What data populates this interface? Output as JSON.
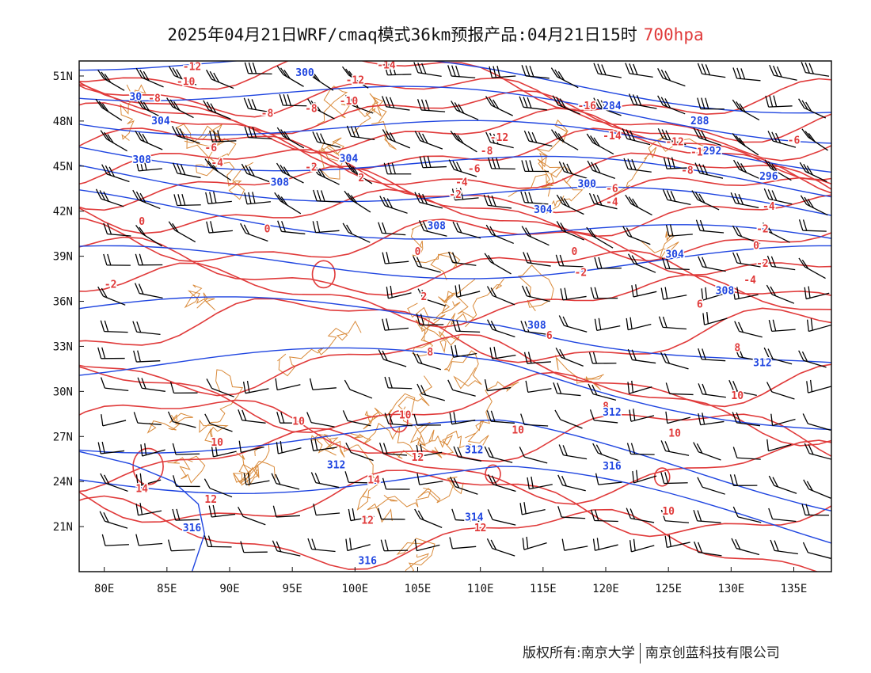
{
  "title": {
    "main": "2025年04月21日WRF/cmaq模式36km预报产品:04月21日15时",
    "level": "700hpa"
  },
  "footer": {
    "left": "版权所有:南京大学",
    "right": "南京创蓝科技有限公司"
  },
  "colors": {
    "temperature": "#e03a3a",
    "height": "#1f45e0",
    "border": "#d98a3a",
    "barb": "#000000",
    "level_text": "#e03a3a"
  },
  "map": {
    "lon_range": [
      78,
      138
    ],
    "lat_range": [
      18,
      52
    ],
    "x_ticks": [
      "80E",
      "85E",
      "90E",
      "95E",
      "100E",
      "105E",
      "110E",
      "115E",
      "120E",
      "125E",
      "130E",
      "135E"
    ],
    "y_ticks": [
      "51N",
      "48N",
      "45N",
      "42N",
      "39N",
      "36N",
      "33N",
      "30N",
      "27N",
      "24N",
      "21N"
    ],
    "temperature_labels": [
      {
        "text": "-12",
        "lon": 87,
        "lat": 51.6
      },
      {
        "text": "-14",
        "lon": 102.5,
        "lat": 51.7
      },
      {
        "text": "-10",
        "lon": 86.5,
        "lat": 50.6
      },
      {
        "text": "-12",
        "lon": 100,
        "lat": 50.7
      },
      {
        "text": "-8",
        "lon": 84,
        "lat": 49.5
      },
      {
        "text": "-10",
        "lon": 99.5,
        "lat": 49.3
      },
      {
        "text": "-8",
        "lon": 93,
        "lat": 48.5
      },
      {
        "text": "-8",
        "lon": 96.5,
        "lat": 48.8
      },
      {
        "text": "-16",
        "lon": 118.5,
        "lat": 49.0
      },
      {
        "text": "-14",
        "lon": 120.5,
        "lat": 47.0
      },
      {
        "text": "-12",
        "lon": 111.5,
        "lat": 46.9
      },
      {
        "text": "-12",
        "lon": 125.5,
        "lat": 46.6
      },
      {
        "text": "-10",
        "lon": 127.5,
        "lat": 45.9
      },
      {
        "text": "-6",
        "lon": 88.5,
        "lat": 46.2
      },
      {
        "text": "-8",
        "lon": 110.5,
        "lat": 46.0
      },
      {
        "text": "-6",
        "lon": 135,
        "lat": 46.7
      },
      {
        "text": "-4",
        "lon": 89,
        "lat": 45.2
      },
      {
        "text": "-2",
        "lon": 96.5,
        "lat": 44.9
      },
      {
        "text": "-6",
        "lon": 109.5,
        "lat": 44.8
      },
      {
        "text": "-8",
        "lon": 126.5,
        "lat": 44.7
      },
      {
        "text": "2",
        "lon": 100.5,
        "lat": 44.2
      },
      {
        "text": "-4",
        "lon": 108.5,
        "lat": 43.9
      },
      {
        "text": "-6",
        "lon": 120.5,
        "lat": 43.5
      },
      {
        "text": "-2",
        "lon": 108,
        "lat": 43.1
      },
      {
        "text": "-4",
        "lon": 120.5,
        "lat": 42.6
      },
      {
        "text": "-4",
        "lon": 133,
        "lat": 42.3
      },
      {
        "text": "0",
        "lon": 83,
        "lat": 41.3
      },
      {
        "text": "0",
        "lon": 93,
        "lat": 40.8
      },
      {
        "text": "-2",
        "lon": 132.5,
        "lat": 40.8
      },
      {
        "text": "0",
        "lon": 132,
        "lat": 39.7
      },
      {
        "text": "0",
        "lon": 105,
        "lat": 39.3
      },
      {
        "text": "0",
        "lon": 117.5,
        "lat": 39.3
      },
      {
        "text": "-2",
        "lon": 132.5,
        "lat": 38.5
      },
      {
        "text": "-2",
        "lon": 118,
        "lat": 37.9
      },
      {
        "text": "-4",
        "lon": 131.5,
        "lat": 37.4
      },
      {
        "text": "-2",
        "lon": 80.5,
        "lat": 37.1
      },
      {
        "text": "2",
        "lon": 105.5,
        "lat": 36.3
      },
      {
        "text": "6",
        "lon": 127.5,
        "lat": 35.8
      },
      {
        "text": "6",
        "lon": 115.5,
        "lat": 33.7
      },
      {
        "text": "8",
        "lon": 106,
        "lat": 32.6
      },
      {
        "text": "8",
        "lon": 130.5,
        "lat": 32.9
      },
      {
        "text": "10",
        "lon": 130.5,
        "lat": 29.7
      },
      {
        "text": "8",
        "lon": 120,
        "lat": 29.0
      },
      {
        "text": "10",
        "lon": 104,
        "lat": 28.4
      },
      {
        "text": "10",
        "lon": 95.5,
        "lat": 28.0
      },
      {
        "text": "10",
        "lon": 113,
        "lat": 27.4
      },
      {
        "text": "10",
        "lon": 125.5,
        "lat": 27.2
      },
      {
        "text": "10",
        "lon": 89,
        "lat": 26.6
      },
      {
        "text": "12",
        "lon": 105,
        "lat": 25.6
      },
      {
        "text": "14",
        "lon": 101.5,
        "lat": 24.1
      },
      {
        "text": "14",
        "lon": 83,
        "lat": 23.5
      },
      {
        "text": "12",
        "lon": 88.5,
        "lat": 22.8
      },
      {
        "text": "10",
        "lon": 125,
        "lat": 22.0
      },
      {
        "text": "12",
        "lon": 101,
        "lat": 21.4
      },
      {
        "text": "12",
        "lon": 110,
        "lat": 20.9
      }
    ],
    "height_labels": [
      {
        "text": "300",
        "lon": 96,
        "lat": 51.2
      },
      {
        "text": "30",
        "lon": 82.5,
        "lat": 49.6
      },
      {
        "text": "304",
        "lon": 84.5,
        "lat": 48.0
      },
      {
        "text": "284",
        "lon": 120.5,
        "lat": 49.0
      },
      {
        "text": "288",
        "lon": 127.5,
        "lat": 48.0
      },
      {
        "text": "292",
        "lon": 128.5,
        "lat": 46.0
      },
      {
        "text": "308",
        "lon": 83,
        "lat": 45.4
      },
      {
        "text": "304",
        "lon": 99.5,
        "lat": 45.5
      },
      {
        "text": "296",
        "lon": 133,
        "lat": 44.3
      },
      {
        "text": "308",
        "lon": 94,
        "lat": 43.9
      },
      {
        "text": "300",
        "lon": 118.5,
        "lat": 43.8
      },
      {
        "text": "304",
        "lon": 115,
        "lat": 42.1
      },
      {
        "text": "308",
        "lon": 106.5,
        "lat": 41.0
      },
      {
        "text": "304",
        "lon": 125.5,
        "lat": 39.1
      },
      {
        "text": "308",
        "lon": 129.5,
        "lat": 36.7
      },
      {
        "text": "308",
        "lon": 114.5,
        "lat": 34.4
      },
      {
        "text": "312",
        "lon": 132.5,
        "lat": 31.9
      },
      {
        "text": "312",
        "lon": 120.5,
        "lat": 28.6
      },
      {
        "text": "312",
        "lon": 109.5,
        "lat": 26.1
      },
      {
        "text": "312",
        "lon": 98.5,
        "lat": 25.1
      },
      {
        "text": "316",
        "lon": 120.5,
        "lat": 25.0
      },
      {
        "text": "316",
        "lon": 87,
        "lat": 20.9
      },
      {
        "text": "316",
        "lon": 101,
        "lat": 18.7
      },
      {
        "text": "314",
        "lon": 109.5,
        "lat": 21.6
      }
    ]
  }
}
